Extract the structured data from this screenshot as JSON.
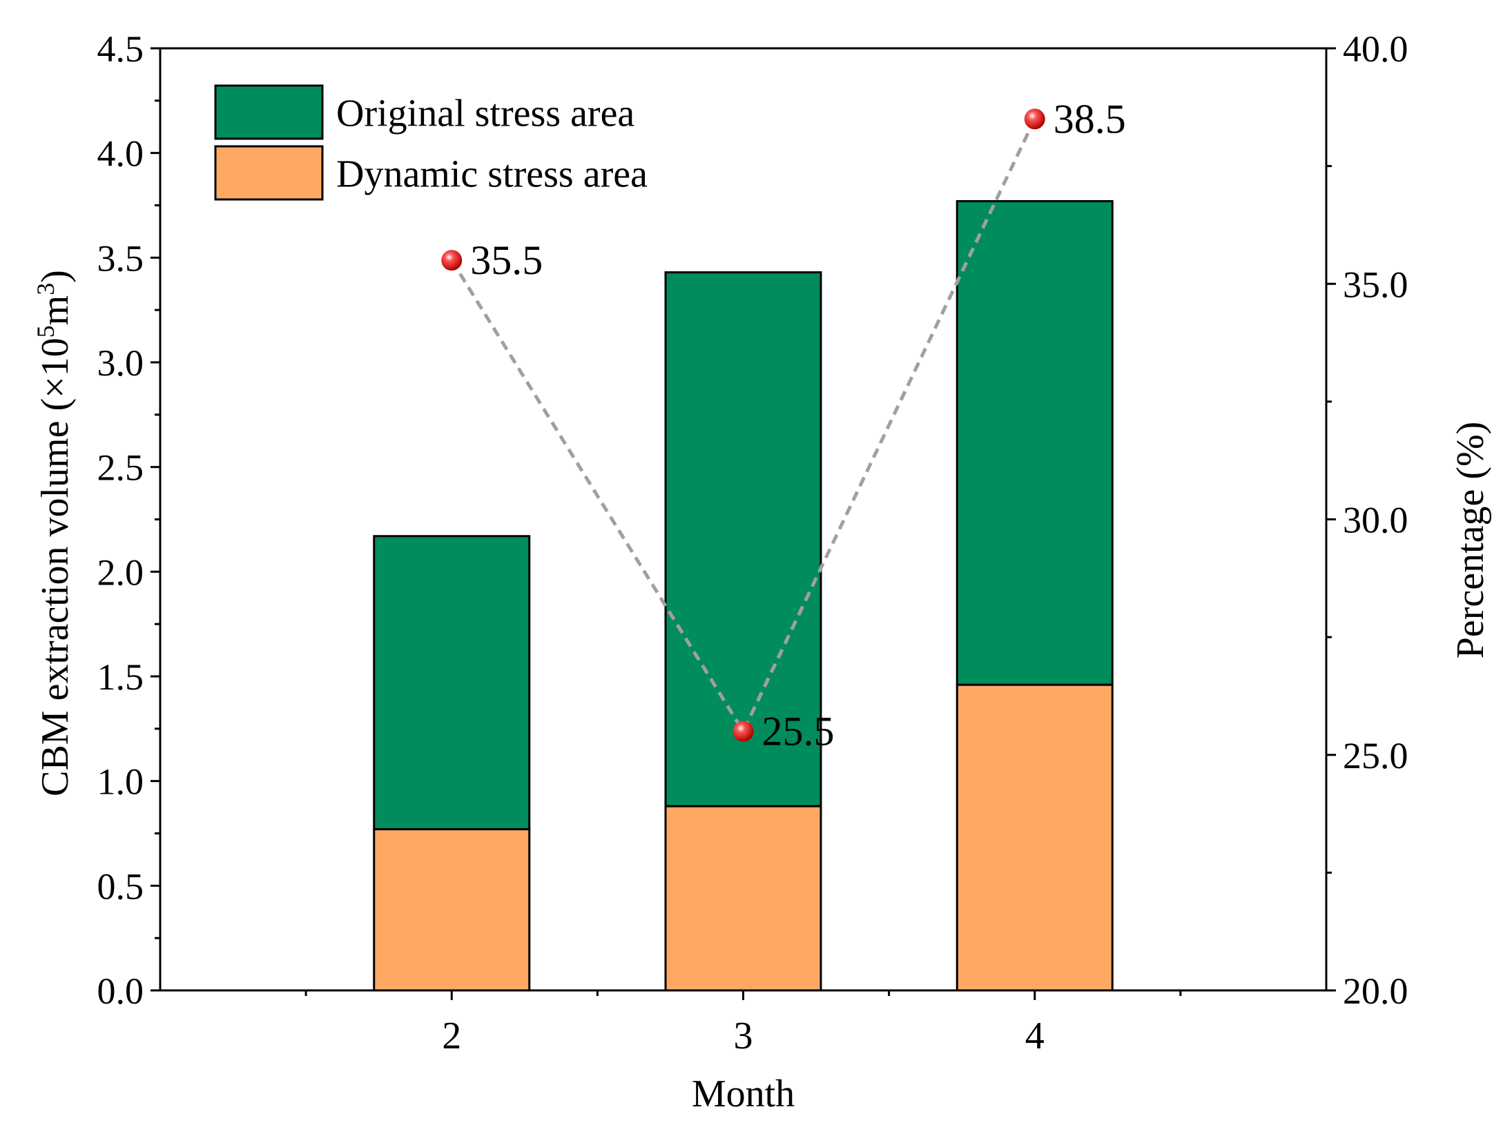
{
  "chart_data": {
    "type": "bar",
    "stacked": true,
    "xlabel": "Month",
    "ylabel_main": "CBM extraction volume (×10",
    "ylabel_exp1": "5",
    "ylabel_mid": "m",
    "ylabel_exp2": "3",
    "ylabel_end": ")",
    "y2label": "Percentage (%)",
    "categories": [
      "2",
      "3",
      "4"
    ],
    "ylim": [
      0,
      4.5
    ],
    "y_ticks": [
      "0.0",
      "0.5",
      "1.0",
      "1.5",
      "2.0",
      "2.5",
      "3.0",
      "3.5",
      "4.0",
      "4.5"
    ],
    "y2lim": [
      20,
      40
    ],
    "y2_ticks": [
      "20.0",
      "25.0",
      "30.0",
      "35.0",
      "40.0"
    ],
    "series": [
      {
        "name": "Dynamic stress area",
        "color": "#FDA964",
        "values": [
          0.77,
          0.88,
          1.46
        ]
      },
      {
        "name": "Original stress area",
        "color": "#008C5B",
        "values": [
          1.4,
          2.55,
          2.31
        ]
      }
    ],
    "line_series": {
      "name": "Percentage",
      "axis": "right",
      "color": "#A0A0A0",
      "marker_color": "#E00000",
      "values": [
        35.5,
        25.5,
        38.5
      ],
      "labels": [
        "35.5",
        "25.5",
        "38.5"
      ]
    },
    "legend": {
      "position": "top-left",
      "items": [
        "Original stress area",
        "Dynamic stress area"
      ]
    }
  }
}
